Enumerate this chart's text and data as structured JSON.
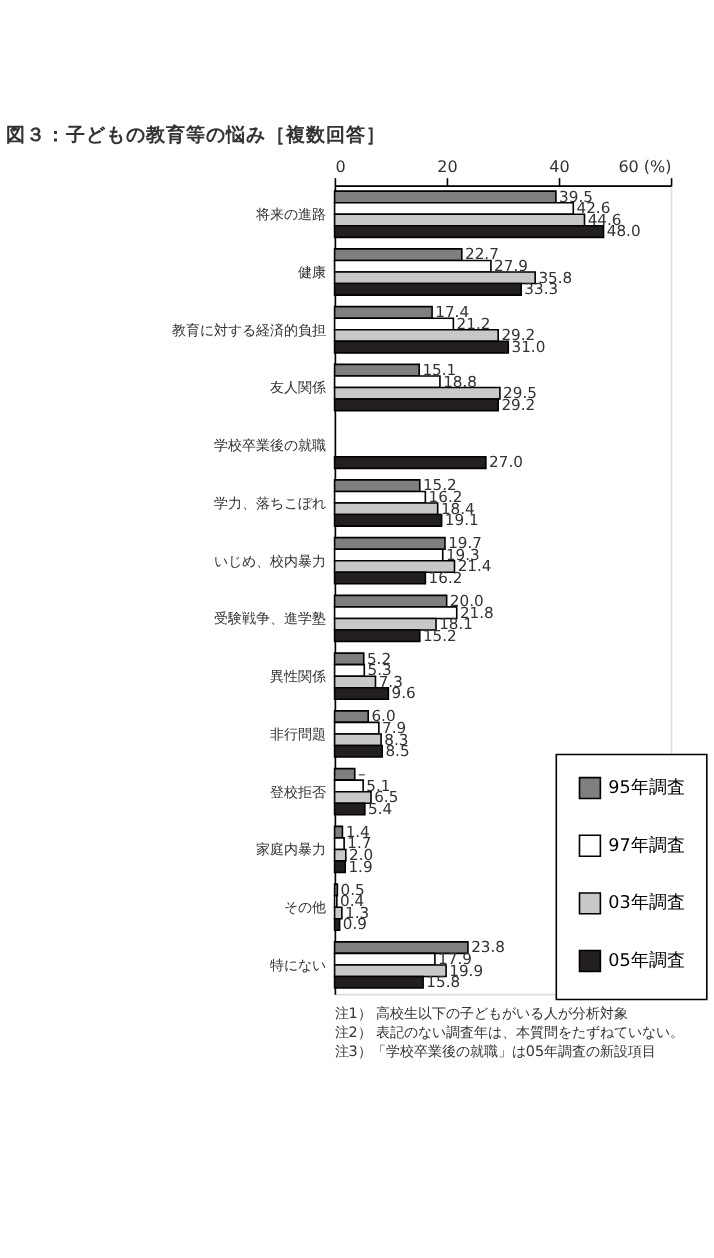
{
  "chart_data": {
    "type": "bar",
    "orientation": "horizontal",
    "title": "図３：子どもの教育等の悩み［複数回答］",
    "categories": [
      "将来の進路",
      "健康",
      "教育に対する経済的負担",
      "友人関係",
      "学校卒業後の就職",
      "学力、落ちこぼれ",
      "いじめ、校内暴力",
      "受験戦争、進学塾",
      "異性関係",
      "非行問題",
      "登校拒否",
      "家庭内暴力",
      "その他",
      "特にない"
    ],
    "series": [
      {
        "name": "95年調査",
        "color": "#7f7f7f",
        "values": [
          39.5,
          22.7,
          17.4,
          15.1,
          null,
          15.2,
          19.7,
          20.0,
          5.2,
          6.0,
          3.6,
          1.4,
          0.5,
          23.8
        ],
        "value_labels": [
          "39.5",
          "22.7",
          "17.4",
          "15.1",
          null,
          "15.2",
          "19.7",
          "20.0",
          "5.2",
          "6.0",
          "–",
          "1.4",
          "0.5",
          "23.8"
        ]
      },
      {
        "name": "97年調査",
        "color": "#ffffff",
        "values": [
          42.6,
          27.9,
          21.2,
          18.8,
          null,
          16.2,
          19.3,
          21.8,
          5.3,
          7.9,
          5.1,
          1.7,
          0.4,
          17.9
        ],
        "value_labels": [
          "42.6",
          "27.9",
          "21.2",
          "18.8",
          null,
          "16.2",
          "19.3",
          "21.8",
          "5.3",
          "7.9",
          "5.1",
          "1.7",
          "0.4",
          "17.9"
        ]
      },
      {
        "name": "03年調査",
        "color": "#c8c8c8",
        "values": [
          44.6,
          35.8,
          29.2,
          29.5,
          null,
          18.4,
          21.4,
          18.1,
          7.3,
          8.3,
          6.5,
          2.0,
          1.3,
          19.9
        ],
        "value_labels": [
          "44.6",
          "35.8",
          "29.2",
          "29.5",
          null,
          "18.4",
          "21.4",
          "18.1",
          "7.3",
          "8.3",
          "6.5",
          "2.0",
          "1.3",
          "19.9"
        ]
      },
      {
        "name": "05年調査",
        "color": "#231f20",
        "values": [
          48.0,
          33.3,
          31.0,
          29.2,
          27.0,
          19.1,
          16.2,
          15.2,
          9.6,
          8.5,
          5.4,
          1.9,
          0.9,
          15.8
        ],
        "value_labels": [
          "48.0",
          "33.3",
          "31.0",
          "29.2",
          "27.0",
          "19.1",
          "16.2",
          "15.2",
          "9.6",
          "8.5",
          "5.4",
          "1.9",
          "0.9",
          "15.8"
        ]
      }
    ],
    "xlim": [
      0,
      60
    ],
    "xticks": [
      0,
      20,
      40,
      {
        "value": 60,
        "label": "60 (%)"
      }
    ],
    "grid": false,
    "legend": "bottom right",
    "annotations": [
      "注1） 高校生以下の子どもがいる人が分析対象",
      "注2） 表記のない調査年は、本質問をたずねていない。",
      "注3）「学校卒業後の就職」は05年調査の新設項目"
    ]
  }
}
